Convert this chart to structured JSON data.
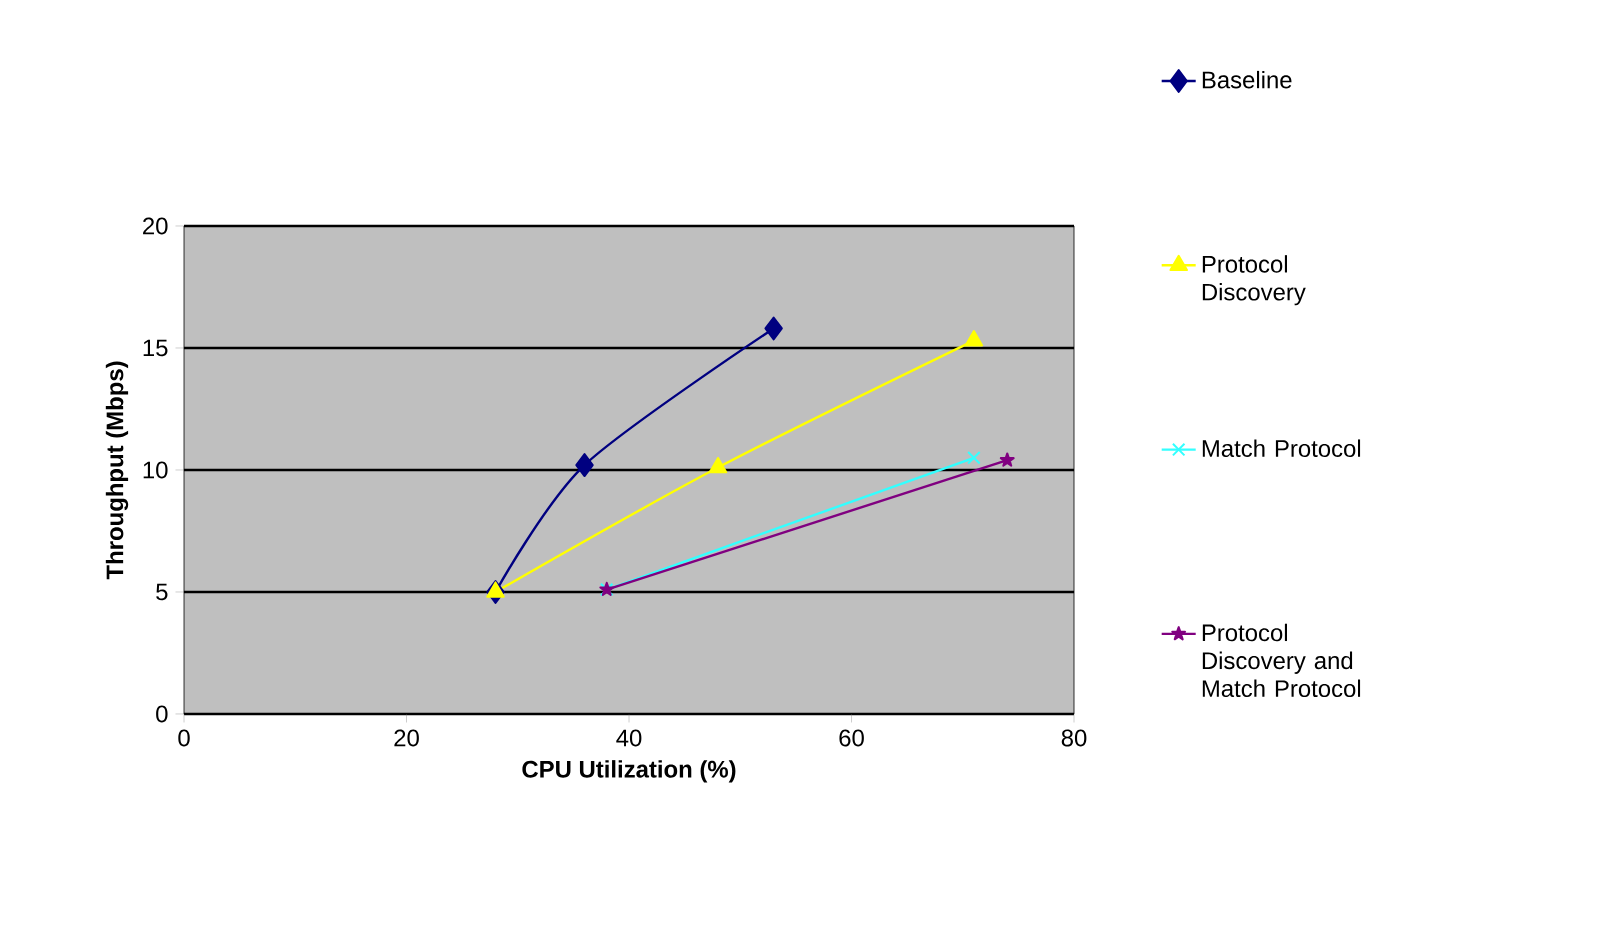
{
  "chart_data": {
    "type": "line",
    "xlabel": "CPU Utilization (%)",
    "ylabel": "Throughput (Mbps)",
    "xlim": [
      0,
      80
    ],
    "xticks": [
      0,
      20,
      40,
      60,
      80
    ],
    "ylim": [
      0,
      20
    ],
    "yticks": [
      0,
      5,
      10,
      15,
      20
    ],
    "grid": "y",
    "legend": "right",
    "series": [
      {
        "name": "Baseline",
        "color": "#000080",
        "marker": "diamond",
        "x": [
          28,
          36,
          53
        ],
        "values": [
          5,
          10.2,
          15.8
        ]
      },
      {
        "name": "Protocol Discovery",
        "color": "#ffff00",
        "marker": "triangle",
        "x": [
          28,
          48,
          71
        ],
        "values": [
          5,
          10.1,
          15.3
        ]
      },
      {
        "name": "Match Protocol",
        "color": "#33ffff",
        "marker": "cross",
        "x": [
          38,
          71
        ],
        "values": [
          5.1,
          10.5
        ]
      },
      {
        "name": "Protocol Discovery and Match Protocol",
        "color": "#800080",
        "marker": "star",
        "x": [
          38,
          74
        ],
        "values": [
          5.1,
          10.4
        ]
      }
    ]
  }
}
